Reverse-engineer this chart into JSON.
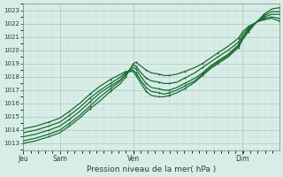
{
  "title": "",
  "xlabel": "Pression niveau de la mer( hPa )",
  "ylabel": "",
  "background_color": "#d8ede8",
  "plot_bg_color": "#d8ede8",
  "grid_color_major": "#adc8c0",
  "grid_color_minor": "#c4ddd8",
  "line_color": "#1a6b30",
  "ylim": [
    1012.5,
    1023.5
  ],
  "yticks": [
    1013,
    1014,
    1015,
    1016,
    1017,
    1018,
    1019,
    1020,
    1021,
    1022,
    1023
  ],
  "xtick_labels": [
    "Jeu",
    "Sam",
    "Ven",
    "Dim"
  ],
  "xtick_positions": [
    0.0,
    0.143,
    0.43,
    0.857
  ],
  "lines": [
    [
      0.0,
      1013.0,
      0.05,
      1013.2,
      0.1,
      1013.5,
      0.143,
      1013.8,
      0.18,
      1014.3,
      0.22,
      1014.9,
      0.26,
      1015.6,
      0.3,
      1016.2,
      0.34,
      1016.9,
      0.38,
      1017.5,
      0.4,
      1018.0,
      0.43,
      1019.0,
      0.44,
      1019.1,
      0.46,
      1018.8,
      0.48,
      1018.5,
      0.5,
      1018.3,
      0.53,
      1018.2,
      0.55,
      1018.1,
      0.57,
      1018.1,
      0.6,
      1018.2,
      0.63,
      1018.4,
      0.67,
      1018.7,
      0.7,
      1019.0,
      0.73,
      1019.4,
      0.76,
      1019.8,
      0.8,
      1020.3,
      0.84,
      1020.9,
      0.857,
      1021.4,
      0.88,
      1021.8,
      0.91,
      1022.1,
      0.94,
      1022.3,
      0.97,
      1022.4,
      1.0,
      1022.2
    ],
    [
      0.0,
      1013.2,
      0.05,
      1013.4,
      0.1,
      1013.7,
      0.143,
      1014.0,
      0.18,
      1014.5,
      0.22,
      1015.1,
      0.26,
      1015.8,
      0.3,
      1016.5,
      0.34,
      1017.1,
      0.38,
      1017.7,
      0.4,
      1018.2,
      0.43,
      1018.9,
      0.44,
      1018.8,
      0.46,
      1018.3,
      0.48,
      1017.9,
      0.5,
      1017.7,
      0.53,
      1017.6,
      0.55,
      1017.5,
      0.57,
      1017.5,
      0.6,
      1017.6,
      0.63,
      1017.9,
      0.67,
      1018.3,
      0.7,
      1018.7,
      0.73,
      1019.1,
      0.76,
      1019.5,
      0.8,
      1020.0,
      0.84,
      1020.6,
      0.857,
      1021.2,
      0.88,
      1021.7,
      0.91,
      1022.1,
      0.94,
      1022.4,
      0.97,
      1022.5,
      1.0,
      1022.4
    ],
    [
      0.0,
      1013.5,
      0.05,
      1013.7,
      0.1,
      1014.0,
      0.143,
      1014.3,
      0.18,
      1014.8,
      0.22,
      1015.4,
      0.26,
      1016.1,
      0.3,
      1016.8,
      0.34,
      1017.3,
      0.38,
      1017.8,
      0.4,
      1018.2,
      0.43,
      1018.7,
      0.44,
      1018.6,
      0.46,
      1018.0,
      0.48,
      1017.5,
      0.5,
      1017.2,
      0.53,
      1017.1,
      0.55,
      1017.0,
      0.57,
      1017.0,
      0.6,
      1017.2,
      0.63,
      1017.5,
      0.67,
      1017.9,
      0.7,
      1018.3,
      0.73,
      1018.8,
      0.76,
      1019.2,
      0.8,
      1019.7,
      0.84,
      1020.4,
      0.857,
      1021.0,
      0.88,
      1021.6,
      0.91,
      1022.1,
      0.94,
      1022.5,
      0.97,
      1022.7,
      1.0,
      1022.7
    ],
    [
      0.0,
      1013.8,
      0.05,
      1014.0,
      0.1,
      1014.3,
      0.143,
      1014.6,
      0.18,
      1015.1,
      0.22,
      1015.7,
      0.26,
      1016.4,
      0.3,
      1017.0,
      0.34,
      1017.5,
      0.38,
      1018.0,
      0.4,
      1018.3,
      0.43,
      1018.5,
      0.44,
      1018.3,
      0.46,
      1017.7,
      0.48,
      1017.2,
      0.5,
      1016.9,
      0.53,
      1016.8,
      0.55,
      1016.7,
      0.57,
      1016.8,
      0.6,
      1017.0,
      0.63,
      1017.3,
      0.67,
      1017.7,
      0.7,
      1018.2,
      0.73,
      1018.7,
      0.76,
      1019.1,
      0.8,
      1019.6,
      0.84,
      1020.3,
      0.857,
      1020.9,
      0.88,
      1021.5,
      0.91,
      1022.1,
      0.94,
      1022.6,
      0.97,
      1022.9,
      1.0,
      1022.9
    ],
    [
      0.0,
      1014.1,
      0.05,
      1014.3,
      0.1,
      1014.6,
      0.143,
      1014.9,
      0.18,
      1015.4,
      0.22,
      1016.0,
      0.26,
      1016.7,
      0.3,
      1017.3,
      0.34,
      1017.8,
      0.38,
      1018.2,
      0.4,
      1018.4,
      0.43,
      1018.4,
      0.44,
      1018.1,
      0.46,
      1017.5,
      0.48,
      1016.9,
      0.5,
      1016.6,
      0.53,
      1016.5,
      0.55,
      1016.5,
      0.57,
      1016.6,
      0.6,
      1016.8,
      0.63,
      1017.1,
      0.67,
      1017.6,
      0.7,
      1018.1,
      0.73,
      1018.6,
      0.76,
      1019.0,
      0.8,
      1019.5,
      0.84,
      1020.2,
      0.857,
      1020.8,
      0.88,
      1021.4,
      0.91,
      1022.1,
      0.94,
      1022.7,
      0.97,
      1023.1,
      1.0,
      1023.2
    ]
  ],
  "marker_size": 1.8,
  "line_width": 0.9
}
